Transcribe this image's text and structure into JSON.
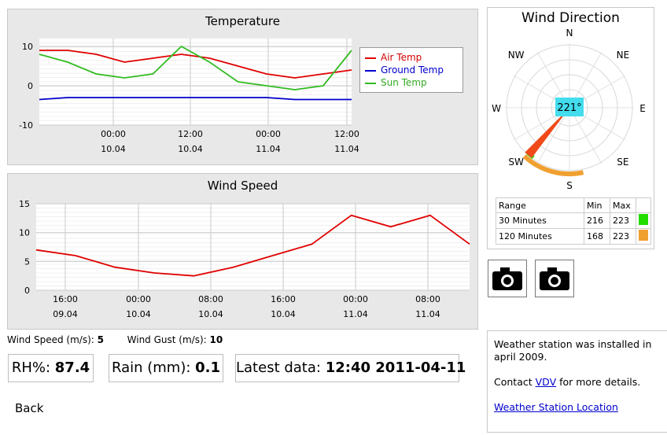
{
  "temperature": {
    "title": "Temperature",
    "yticks": [
      "10",
      "0",
      "-10"
    ],
    "xticks": [
      {
        "time": "00:00",
        "date": "10.04"
      },
      {
        "time": "12:00",
        "date": "10.04"
      },
      {
        "time": "00:00",
        "date": "11.04"
      },
      {
        "time": "12:00",
        "date": "11.04"
      }
    ],
    "legend": [
      {
        "label": "Air Temp",
        "color": "#e00000"
      },
      {
        "label": "Ground Temp",
        "color": "#0000cc"
      },
      {
        "label": "Sun Temp",
        "color": "#33bb22"
      }
    ]
  },
  "wind_speed_chart": {
    "title": "Wind Speed",
    "yticks": [
      "15",
      "10",
      "5",
      "0"
    ],
    "xticks": [
      {
        "time": "16:00",
        "date": "09.04"
      },
      {
        "time": "00:00",
        "date": "10.04"
      },
      {
        "time": "08:00",
        "date": "10.04"
      },
      {
        "time": "16:00",
        "date": "10.04"
      },
      {
        "time": "00:00",
        "date": "11.04"
      },
      {
        "time": "08:00",
        "date": "11.04"
      }
    ],
    "color": "#e00000"
  },
  "wind_direction": {
    "title": "Wind Direction",
    "compass": {
      "N": "N",
      "NE": "NE",
      "E": "E",
      "SE": "SE",
      "S": "S",
      "SW": "SW",
      "W": "W",
      "NW": "NW"
    },
    "current": "221°",
    "range_table": {
      "headers": [
        "Range",
        "Min",
        "Max"
      ],
      "rows": [
        {
          "label": "30 Minutes",
          "min": "216",
          "max": "223",
          "color": "#22dd00"
        },
        {
          "label": "120 Minutes",
          "min": "168",
          "max": "223",
          "color": "#f0a030"
        }
      ]
    }
  },
  "readings": {
    "wind_speed_label": "Wind Speed (m/s):",
    "wind_speed_value": "5",
    "wind_gust_label": "Wind Gust (m/s):",
    "wind_gust_value": "10",
    "rh_label": "RH%:",
    "rh_value": "87.4",
    "rain_label": "Rain (mm):",
    "rain_value": "0.1",
    "latest_label": "Latest data:",
    "latest_value": "12:40 2011-04-11"
  },
  "nav": {
    "back": "Back"
  },
  "info": {
    "installed": "Weather station was installed in april 2009.",
    "contact_prefix": "Contact ",
    "contact_link": "VDV",
    "contact_suffix": " for more details.",
    "location_link": "Weather Station Location"
  },
  "chart_data": [
    {
      "type": "line",
      "title": "Temperature",
      "x": [
        0,
        4,
        8,
        12,
        16,
        20,
        24,
        28,
        32,
        36,
        40,
        44
      ],
      "xlabel": "",
      "ylabel": "",
      "ylim": [
        -10,
        12
      ],
      "series": [
        {
          "name": "Air Temp",
          "values": [
            9,
            9,
            8,
            6,
            7,
            8,
            7,
            5,
            3,
            2,
            3,
            4
          ]
        },
        {
          "name": "Ground Temp",
          "values": [
            -3.5,
            -3,
            -3,
            -3,
            -3,
            -3,
            -3,
            -3,
            -3,
            -3.5,
            -3.5,
            -3.5
          ]
        },
        {
          "name": "Sun Temp",
          "values": [
            8,
            6,
            3,
            2,
            3,
            10,
            6,
            1,
            0,
            -1,
            0,
            9
          ]
        }
      ]
    },
    {
      "type": "line",
      "title": "Wind Speed",
      "x": [
        0,
        6,
        12,
        18,
        24,
        30,
        36,
        42,
        48,
        54,
        60,
        66
      ],
      "xlabel": "",
      "ylabel": "",
      "ylim": [
        0,
        15
      ],
      "series": [
        {
          "name": "",
          "values": [
            7,
            6,
            4,
            3,
            2.5,
            4,
            6,
            8,
            13,
            11,
            13,
            8
          ]
        }
      ]
    }
  ]
}
